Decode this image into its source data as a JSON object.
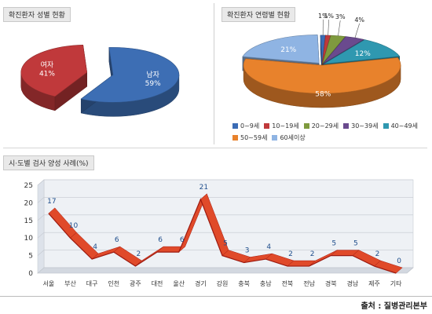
{
  "source_text": "출처 : 질병관리본부",
  "chart_data": [
    {
      "type": "pie",
      "title": "확진환자 성별 현황",
      "slices": [
        {
          "label": "남자",
          "value": 59,
          "value_label": "59%",
          "color": "#3d6eb4"
        },
        {
          "label": "여자",
          "value": 41,
          "value_label": "41%",
          "color": "#c0393b"
        }
      ]
    },
    {
      "type": "pie",
      "title": "확진환자 연령별 현황",
      "slices": [
        {
          "label": "0~9세",
          "value": 1,
          "value_label": "1%",
          "color": "#3b6cb5"
        },
        {
          "label": "10~19세",
          "value": 1,
          "value_label": "1%",
          "color": "#c0393b"
        },
        {
          "label": "20~29세",
          "value": 3,
          "value_label": "3%",
          "color": "#7f9a3e"
        },
        {
          "label": "30~39세",
          "value": 4,
          "value_label": "4%",
          "color": "#6a4a8e"
        },
        {
          "label": "40~49세",
          "value": 12,
          "value_label": "12%",
          "color": "#2f98b0"
        },
        {
          "label": "50~59세",
          "value": 58,
          "value_label": "58%",
          "color": "#e8822c"
        },
        {
          "label": "60세이상",
          "value": 21,
          "value_label": "21%",
          "color": "#8fb4e3"
        }
      ],
      "legend": [
        "0~9세",
        "10~19세",
        "20~29세",
        "30~39세",
        "40~49세",
        "50~59세",
        "60세이상"
      ],
      "legend_colors": [
        "#3b6cb5",
        "#c0393b",
        "#7f9a3e",
        "#6a4a8e",
        "#2f98b0",
        "#e8822c",
        "#8fb4e3"
      ]
    },
    {
      "type": "line",
      "title": "시·도별 검사 양성 사례(%)",
      "categories": [
        "서울",
        "부산",
        "대구",
        "인천",
        "광주",
        "대전",
        "울산",
        "경기",
        "강원",
        "충북",
        "충남",
        "전북",
        "전남",
        "경북",
        "경남",
        "제주",
        "기타"
      ],
      "values": [
        17,
        10,
        4,
        6,
        2,
        6,
        6,
        21,
        5,
        3,
        4,
        2,
        2,
        5,
        5,
        2,
        0
      ],
      "ylim": [
        0,
        25
      ],
      "yticks": [
        0,
        5,
        10,
        15,
        20,
        25
      ],
      "grid": true,
      "color": "#d62a1e"
    }
  ]
}
